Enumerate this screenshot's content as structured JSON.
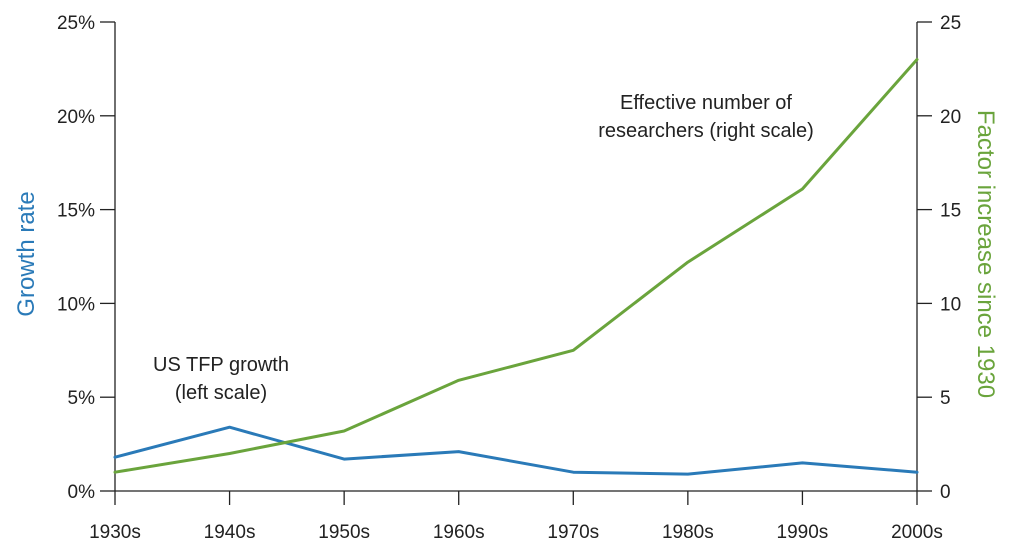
{
  "chart_data": {
    "type": "line",
    "categories": [
      "1930s",
      "1940s",
      "1950s",
      "1960s",
      "1970s",
      "1980s",
      "1990s",
      "2000s"
    ],
    "left_axis": {
      "label": "Growth rate",
      "ticks": [
        "0%",
        "5%",
        "10%",
        "15%",
        "20%",
        "25%"
      ],
      "ylim": [
        0,
        25
      ],
      "color": "#2a7ab8"
    },
    "right_axis": {
      "label": "Factor increase since 1930",
      "ticks": [
        "0",
        "5",
        "10",
        "15",
        "20",
        "25"
      ],
      "ylim": [
        0,
        25
      ],
      "color": "#6aa43c"
    },
    "series": [
      {
        "axis": "left",
        "color": "#2a7ab8",
        "values": [
          1.8,
          3.4,
          1.7,
          2.1,
          1.0,
          0.9,
          1.5,
          1.0
        ]
      },
      {
        "axis": "right",
        "color": "#6aa43c",
        "values": [
          1.0,
          2.0,
          3.2,
          5.9,
          7.5,
          12.2,
          16.1,
          23.0
        ]
      }
    ],
    "annotations": [
      {
        "line1": "US TFP growth",
        "line2": "(left scale)"
      },
      {
        "line1": "Effective number of",
        "line2": "researchers (right scale)"
      }
    ],
    "grid": false
  }
}
